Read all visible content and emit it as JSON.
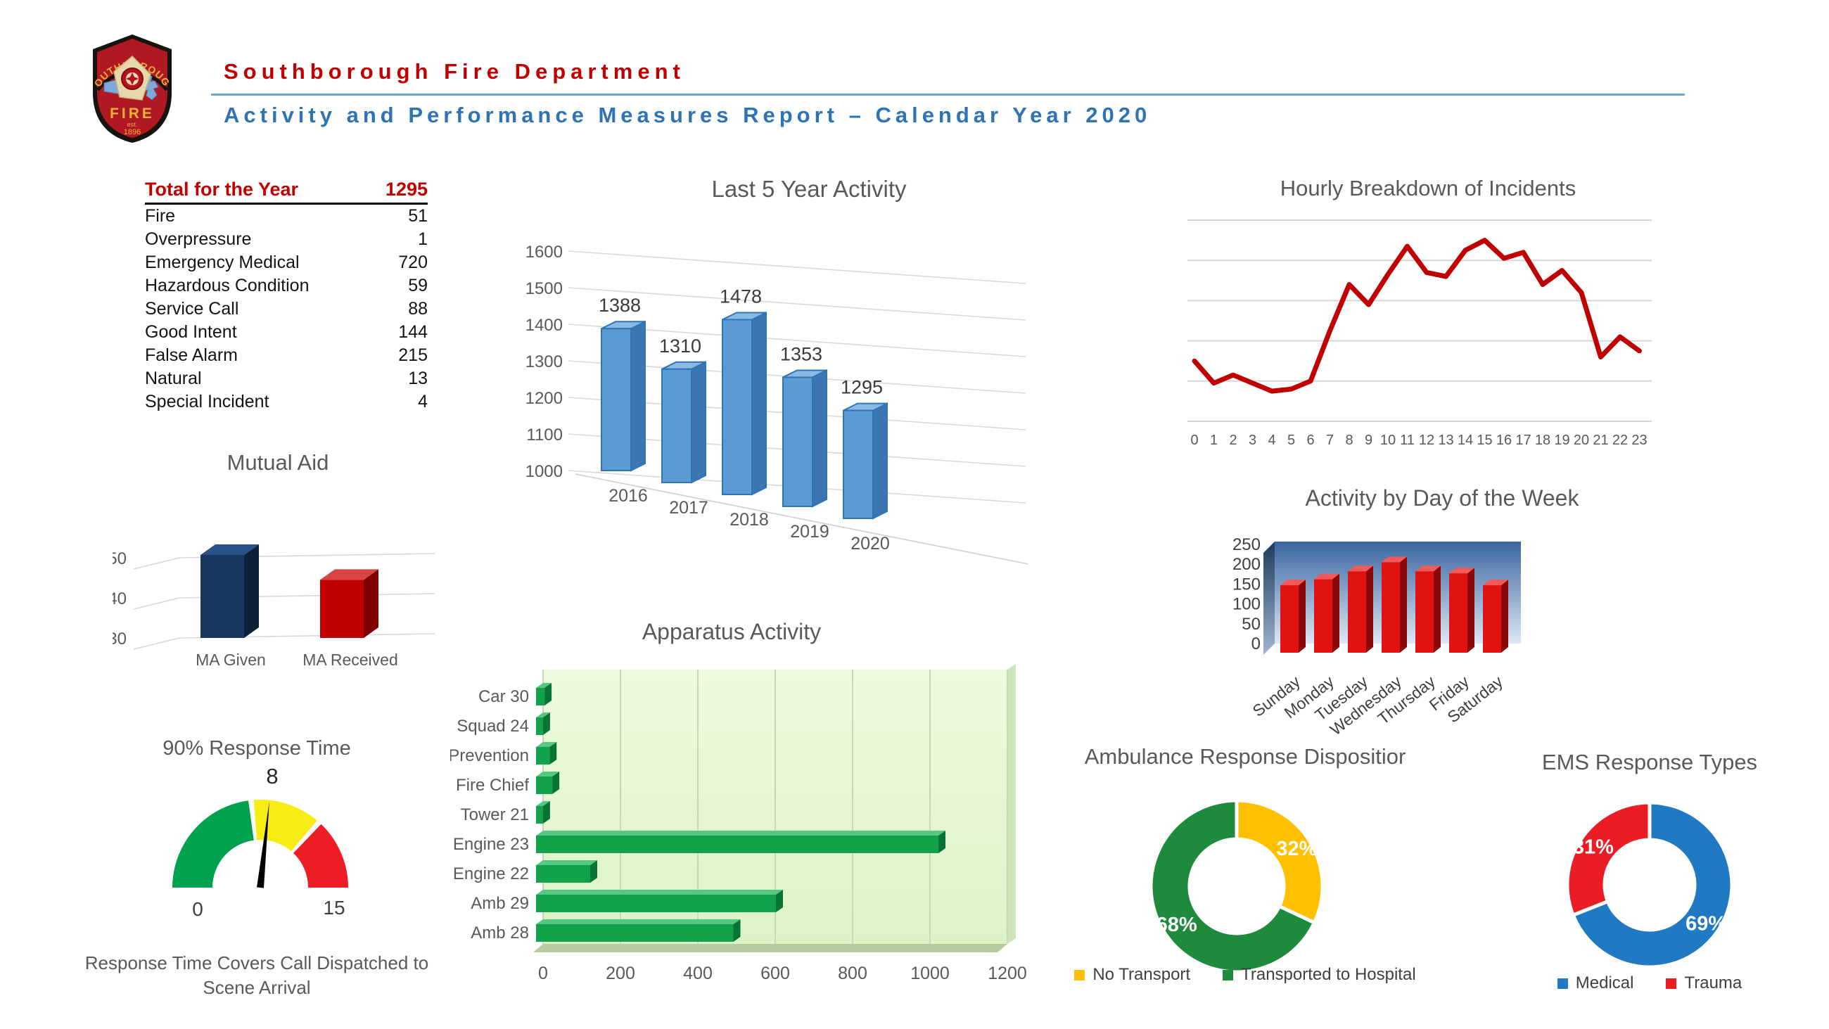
{
  "header": {
    "org_name": "Southborough Fire Department",
    "report_title": "Activity and Performance Measures Report – Calendar Year 2020",
    "org_color": "#C00000",
    "report_color": "#2E74B5",
    "rule_color": "#6FA3D3",
    "logo": {
      "badge_top": "SOUTHBOROUGH",
      "badge_main": "FIRE",
      "badge_est": "est.",
      "badge_year": "1896"
    }
  },
  "year_table": {
    "header_label": "Total for the Year",
    "header_value": "1295",
    "header_color": "#C00000",
    "rows": [
      {
        "label": "Fire",
        "value": "51"
      },
      {
        "label": "Overpressure",
        "value": "1"
      },
      {
        "label": "Emergency Medical",
        "value": "720"
      },
      {
        "label": "Hazardous Condition",
        "value": "59"
      },
      {
        "label": "Service Call",
        "value": "88"
      },
      {
        "label": "Good Intent",
        "value": "144"
      },
      {
        "label": "False Alarm",
        "value": "215"
      },
      {
        "label": "Natural",
        "value": "13"
      },
      {
        "label": "Special Incident",
        "value": "4"
      }
    ]
  },
  "chart_data": [
    {
      "id": "last_5_year_activity",
      "type": "bar",
      "projection": "3d",
      "title": "Last 5 Year Activity",
      "categories": [
        "2016",
        "2017",
        "2018",
        "2019",
        "2020"
      ],
      "values": [
        1388,
        1310,
        1478,
        1353,
        1295
      ],
      "ylim": [
        1000,
        1600
      ],
      "ytick": 100,
      "legend": "none",
      "grid": true,
      "bar_color": "#5B9BD5",
      "bar_edge": "#2E75B6",
      "bar_top": "#8AB9E4",
      "bar_side": "#3C76B0"
    },
    {
      "id": "hourly_breakdown",
      "type": "line",
      "title": "Hourly Breakdown of Incidents",
      "x": [
        0,
        1,
        2,
        3,
        4,
        5,
        6,
        7,
        8,
        9,
        10,
        11,
        12,
        13,
        14,
        15,
        16,
        17,
        18,
        19,
        20,
        21,
        22,
        23
      ],
      "values": [
        30,
        19,
        23,
        19,
        15,
        16,
        20,
        45,
        68,
        58,
        73,
        87,
        74,
        72,
        85,
        90,
        81,
        84,
        68,
        75,
        64,
        32,
        42,
        35
      ],
      "ylim": [
        0,
        100
      ],
      "y_axis_labels_shown": false,
      "grid": true,
      "line_color": "#C00000"
    },
    {
      "id": "mutual_aid",
      "type": "bar",
      "projection": "3d",
      "title": "Mutual Aid",
      "categories": [
        "MA Given",
        "MA Received"
      ],
      "values": [
        50,
        44
      ],
      "ylim": [
        30,
        50
      ],
      "ytick": 10,
      "grid": true,
      "colors": [
        "#17375E",
        "#C00000"
      ],
      "tops": [
        "#2B5288",
        "#D94545"
      ],
      "sides": [
        "#0D2038",
        "#7F0000"
      ]
    },
    {
      "id": "activity_by_day",
      "type": "bar",
      "projection": "3d",
      "title": "Activity by Day of the Week",
      "categories": [
        "Sunday",
        "Monday",
        "Tuesday",
        "Wednesday",
        "Thursday",
        "Friday",
        "Saturday"
      ],
      "values": [
        170,
        185,
        205,
        228,
        205,
        200,
        170
      ],
      "ylim": [
        0,
        250
      ],
      "ytick": 50,
      "bar_color": "#E01212",
      "bar_top": "#F25A5A",
      "bar_side": "#8F0808",
      "wall_gradient": [
        "#3A66A0",
        "#DCE8F6"
      ],
      "side_wall_gradient": [
        "#1E3A5C",
        "#9FB6CE"
      ]
    },
    {
      "id": "apparatus_activity",
      "type": "hbar",
      "projection": "3d",
      "title": "Apparatus Activity",
      "categories": [
        "Car 30",
        "Squad 24",
        "Prevention",
        "Fire Chief",
        "Tower 21",
        "Engine 23",
        "Engine 22",
        "Amb 29",
        "Amb 28"
      ],
      "values": [
        22,
        18,
        35,
        42,
        18,
        1040,
        140,
        620,
        510
      ],
      "xlim": [
        0,
        1200
      ],
      "xtick": 200,
      "grid": true,
      "bar_color": "#12A24B",
      "bar_top": "#55C983",
      "bar_end": "#0A7434",
      "plot_gradient": [
        "#EDFBDE",
        "#DCF3C6"
      ],
      "floor_color": "#B7CBA0",
      "bevel_color": "#CDE7B6"
    },
    {
      "id": "response_time_gauge",
      "type": "gauge",
      "title": "90% Response Time",
      "min": 0,
      "max": 15,
      "value": 8,
      "value_label": "8",
      "min_label": "0",
      "max_label": "15",
      "segments": [
        {
          "from": 0,
          "to": 7,
          "color": "#00A24F"
        },
        {
          "from": 7,
          "to": 11,
          "color": "#F7EC13"
        },
        {
          "from": 11,
          "to": 15,
          "color": "#EE1C25"
        }
      ],
      "needle_color": "#000000",
      "caption": "Response Time Covers Call Dispatched to Scene Arrival"
    },
    {
      "id": "ambulance_disposition",
      "type": "donut",
      "title": "Ambulance Response Dispositior",
      "slices": [
        {
          "label": "No Transport",
          "pct": 32,
          "pct_label": "32%",
          "color": "#FFC000"
        },
        {
          "label": "Transported to Hospital",
          "pct": 68,
          "pct_label": "68%",
          "color": "#1E8A3C"
        }
      ],
      "legend_position": "bottom"
    },
    {
      "id": "ems_response_types",
      "type": "donut",
      "title": "EMS Response Types",
      "slices": [
        {
          "label": "Medical",
          "pct": 69,
          "pct_label": "69%",
          "color": "#2079C3"
        },
        {
          "label": "Trauma",
          "pct": 31,
          "pct_label": "31%",
          "color": "#EA1C24"
        }
      ],
      "legend_position": "bottom"
    }
  ]
}
